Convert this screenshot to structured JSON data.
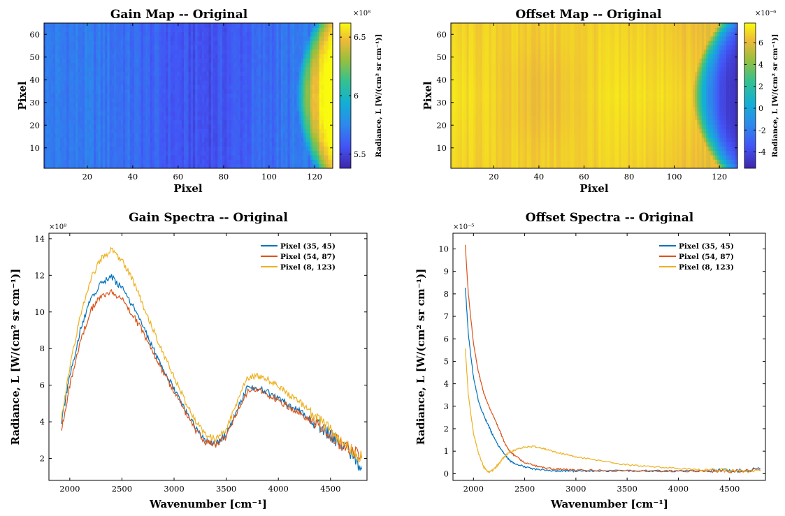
{
  "chart_data": [
    {
      "id": "gain_map",
      "type": "heatmap",
      "title": "Gain Map -- Original",
      "xlabel": "Pixel",
      "ylabel": "Pixel",
      "xlim": [
        1,
        128
      ],
      "ylim": [
        1,
        65
      ],
      "xticks": [
        20,
        40,
        60,
        80,
        100,
        120
      ],
      "yticks": [
        10,
        20,
        30,
        40,
        50,
        60
      ],
      "colormap": "parula",
      "colorbar": {
        "label": "Radiance, L [W/(cm² sr cm⁻¹)]",
        "range": [
          5.38,
          6.62
        ],
        "ticks": [
          5.5,
          6,
          6.5
        ],
        "tick_labels": [
          "5.5",
          "6",
          "6.5"
        ],
        "exponent": "×10⁸"
      },
      "grid": false
    },
    {
      "id": "offset_map",
      "type": "heatmap",
      "title": "Offset Map -- Original",
      "xlabel": "Pixel",
      "ylabel": "Pixel",
      "xlim": [
        1,
        128
      ],
      "ylim": [
        1,
        65
      ],
      "xticks": [
        20,
        40,
        60,
        80,
        100,
        120
      ],
      "yticks": [
        10,
        20,
        30,
        40,
        50,
        60
      ],
      "colormap": "parula",
      "colorbar": {
        "label": "Radiance, L [W/(cm² sr cm⁻¹)]",
        "range": [
          -5.5,
          7.8
        ],
        "ticks": [
          -4,
          -2,
          0,
          2,
          4,
          6
        ],
        "tick_labels": [
          "-4",
          "-2",
          "0",
          "2",
          "4",
          "6"
        ],
        "exponent": "×10⁻⁶"
      },
      "grid": false
    },
    {
      "id": "gain_spectra",
      "type": "line",
      "title": "Gain Spectra -- Original",
      "xlabel": "Wavenumber [cm⁻¹]",
      "ylabel": "Radiance, L [W/(cm² sr cm⁻¹)]",
      "exponent": "×10⁸",
      "xlim": [
        1800,
        4850
      ],
      "ylim": [
        0.8,
        14.3
      ],
      "xticks": [
        2000,
        2500,
        3000,
        3500,
        4000,
        4500
      ],
      "yticks": [
        2,
        4,
        6,
        8,
        10,
        12,
        14
      ],
      "legend": "top-right",
      "grid": false,
      "x": [
        1920,
        2000,
        2100,
        2200,
        2300,
        2400,
        2500,
        2600,
        2700,
        2800,
        2900,
        3000,
        3100,
        3200,
        3300,
        3400,
        3500,
        3600,
        3700,
        3800,
        3900,
        4000,
        4100,
        4200,
        4300,
        4400,
        4500,
        4600,
        4700,
        4800
      ],
      "series": [
        {
          "name": "Pixel (35, 45)",
          "color": "#0072BD",
          "values": [
            4.0,
            6.5,
            9.0,
            10.7,
            11.6,
            11.9,
            11.3,
            10.4,
            9.3,
            8.0,
            6.8,
            5.8,
            4.7,
            3.7,
            3.0,
            2.75,
            3.3,
            4.6,
            5.8,
            5.9,
            5.6,
            5.3,
            4.9,
            4.6,
            4.2,
            3.8,
            3.3,
            2.8,
            2.3,
            1.4
          ]
        },
        {
          "name": "Pixel (54, 87)",
          "color": "#D95319",
          "values": [
            3.6,
            6.0,
            8.4,
            10.1,
            10.9,
            11.1,
            10.7,
            9.9,
            8.9,
            7.7,
            6.6,
            5.7,
            4.6,
            3.6,
            2.9,
            2.7,
            3.2,
            4.5,
            5.6,
            5.8,
            5.5,
            5.2,
            4.8,
            4.5,
            4.1,
            3.7,
            3.3,
            2.8,
            2.5,
            2.0
          ]
        },
        {
          "name": "Pixel (8, 123)",
          "color": "#EDB120",
          "values": [
            4.2,
            7.0,
            9.8,
            11.8,
            12.9,
            13.4,
            12.8,
            11.8,
            10.4,
            9.0,
            7.7,
            6.5,
            5.2,
            4.1,
            3.3,
            3.0,
            3.6,
            5.0,
            6.4,
            6.5,
            6.3,
            5.9,
            5.5,
            5.1,
            4.6,
            4.1,
            3.6,
            3.0,
            2.5,
            2.0
          ]
        }
      ]
    },
    {
      "id": "offset_spectra",
      "type": "line",
      "title": "Offset Spectra -- Original",
      "xlabel": "Wavenumber [cm⁻¹]",
      "ylabel": "Radiance, L [W/(cm² sr cm⁻¹)]",
      "exponent": "×10⁻⁵",
      "xlim": [
        1800,
        4850
      ],
      "ylim": [
        -0.3,
        10.7
      ],
      "xticks": [
        2000,
        2500,
        3000,
        3500,
        4000,
        4500
      ],
      "yticks": [
        0,
        1,
        2,
        3,
        4,
        5,
        6,
        7,
        8,
        9,
        10
      ],
      "legend": "top-right",
      "grid": false,
      "x": [
        1920,
        1950,
        2000,
        2050,
        2100,
        2150,
        2200,
        2250,
        2300,
        2350,
        2400,
        2500,
        2600,
        2700,
        2800,
        2900,
        3000,
        3200,
        3400,
        3600,
        3800,
        4000,
        4200,
        4400,
        4600,
        4800
      ],
      "series": [
        {
          "name": "Pixel (35, 45)",
          "color": "#0072BD",
          "values": [
            8.3,
            6.2,
            4.3,
            3.2,
            2.6,
            2.1,
            1.6,
            1.2,
            0.9,
            0.6,
            0.45,
            0.3,
            0.2,
            0.15,
            0.12,
            0.12,
            0.12,
            0.12,
            0.12,
            0.14,
            0.12,
            0.12,
            0.12,
            0.14,
            0.14,
            0.2
          ]
        },
        {
          "name": "Pixel (54, 87)",
          "color": "#D95319",
          "values": [
            10.2,
            8.0,
            5.8,
            4.5,
            3.6,
            3.0,
            2.5,
            2.0,
            1.4,
            1.0,
            0.8,
            0.5,
            0.35,
            0.25,
            0.2,
            0.18,
            0.15,
            0.15,
            0.12,
            0.12,
            0.12,
            0.12,
            0.12,
            0.12,
            0.12,
            0.15
          ]
        },
        {
          "name": "Pixel (8, 123)",
          "color": "#EDB120",
          "values": [
            5.6,
            3.5,
            1.8,
            0.9,
            0.3,
            0.05,
            0.2,
            0.45,
            0.75,
            0.95,
            1.05,
            1.2,
            1.2,
            1.1,
            0.95,
            0.85,
            0.75,
            0.6,
            0.45,
            0.35,
            0.3,
            0.22,
            0.18,
            0.15,
            0.12,
            0.12
          ]
        }
      ]
    }
  ]
}
